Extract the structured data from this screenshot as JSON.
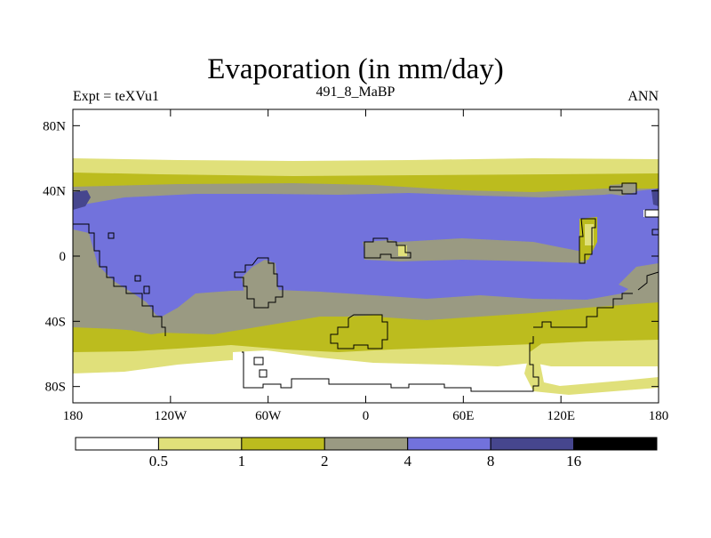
{
  "chart_data": {
    "type": "heatmap",
    "title": "Evaporation (in mm/day)",
    "left_subtitle": "Expt = teXVu1",
    "center_subtitle": "491_8_MaBP",
    "right_subtitle": "ANN",
    "variable": "Evaporation",
    "units": "mm/day",
    "x_ticks": [
      "180",
      "120W",
      "60W",
      "0",
      "60E",
      "120E",
      "180"
    ],
    "x_tick_values": [
      -180,
      -120,
      -60,
      0,
      60,
      120,
      180
    ],
    "y_ticks": [
      "80N",
      "40N",
      "0",
      "40S",
      "80S"
    ],
    "y_tick_values": [
      80,
      40,
      0,
      -40,
      -80
    ],
    "xlim": [
      -180,
      180
    ],
    "ylim": [
      -90,
      90
    ],
    "legend_placement": "bottom",
    "colorbar": {
      "labels": [
        "0.5",
        "1",
        "2",
        "4",
        "8",
        "16"
      ],
      "levels": [
        0.5,
        1,
        2,
        4,
        8,
        16
      ],
      "colors": [
        "#ffffff",
        "#e0e07a",
        "#bcbc1e",
        "#9a9a82",
        "#7272dc",
        "#46468e",
        "#000000"
      ]
    },
    "bands": [
      {
        "lat_range": [
          90,
          58
        ],
        "value_range": "< 0.5",
        "color": "#ffffff"
      },
      {
        "lat_range": [
          58,
          48
        ],
        "value_range": "0.5 - 1",
        "color": "#e0e07a"
      },
      {
        "lat_range": [
          48,
          40
        ],
        "value_range": "1 - 2",
        "color": "#bcbc1e"
      },
      {
        "lat_range": [
          40,
          36
        ],
        "value_range": "2 - 4",
        "color": "#9a9a82"
      },
      {
        "lat_range": [
          36,
          -25
        ],
        "value_range": "4 - 8",
        "color": "#7272dc"
      },
      {
        "lat_range": [
          -25,
          -38
        ],
        "value_range": "2 - 4",
        "color": "#9a9a82"
      },
      {
        "lat_range": [
          -38,
          -50
        ],
        "value_range": "1 - 2",
        "color": "#bcbc1e"
      },
      {
        "lat_range": [
          -50,
          -65
        ],
        "value_range": "0.5 - 1",
        "color": "#e0e07a"
      },
      {
        "lat_range": [
          -65,
          -90
        ],
        "value_range": "< 0.5",
        "color": "#ffffff"
      }
    ],
    "grid": false
  }
}
